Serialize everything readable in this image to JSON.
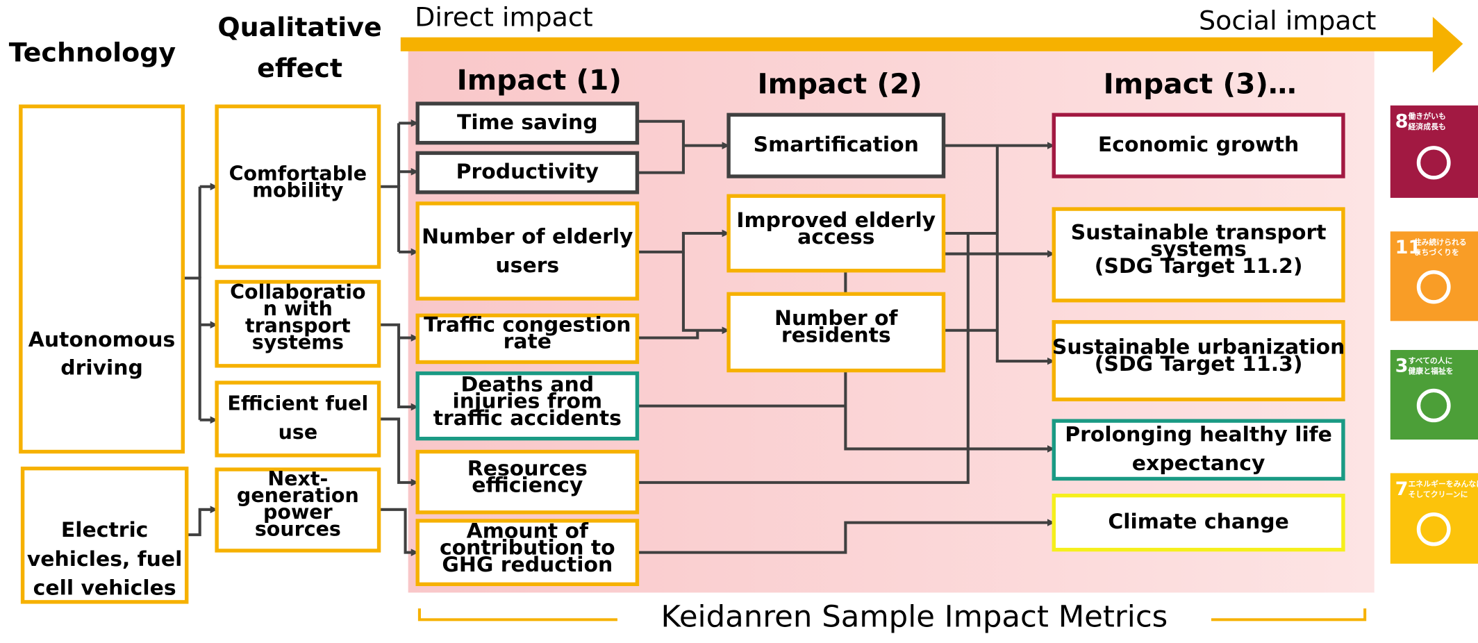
{
  "headers": {
    "technology": "Technology",
    "qualitative_effect": [
      "Qualitative",
      "effect"
    ],
    "direct_impact": "Direct impact",
    "social_impact": "Social impact",
    "impact_1": "Impact (1)",
    "impact_2": "Impact (2)",
    "impact_3": "Impact (3)…"
  },
  "nodes": [
    {
      "lines": [
        "Autonomous",
        "driving"
      ]
    },
    {
      "lines": [
        "Electric",
        "vehicles, fuel",
        "cell vehicles"
      ]
    },
    {
      "lines": [
        "Comfortable",
        "mobility"
      ]
    },
    {
      "lines": [
        "Collaboratio",
        "n with",
        "transport",
        "systems"
      ]
    },
    {
      "lines": [
        "Efficient fuel",
        "use"
      ]
    },
    {
      "lines": [
        "Next-",
        "generation",
        "power",
        "sources"
      ]
    },
    {
      "lines": [
        "Time saving"
      ]
    },
    {
      "lines": [
        "Productivity"
      ]
    },
    {
      "lines": [
        "Number of elderly",
        "users"
      ]
    },
    {
      "lines": [
        "Traffic congestion",
        "rate"
      ]
    },
    {
      "lines": [
        "Deaths and",
        "injuries from",
        "traffic accidents"
      ]
    },
    {
      "lines": [
        "Resources",
        "efficiency"
      ]
    },
    {
      "lines": [
        "Amount of",
        "contribution to",
        "GHG reduction"
      ]
    },
    {
      "lines": [
        "Smartification"
      ]
    },
    {
      "lines": [
        "Improved elderly",
        "access"
      ]
    },
    {
      "lines": [
        "Number of",
        "residents"
      ]
    },
    {
      "lines": [
        "Economic growth"
      ]
    },
    {
      "lines": [
        "Sustainable transport",
        "systems",
        "(SDG Target 11.2)"
      ]
    },
    {
      "lines": [
        "Sustainable urbanization",
        "(SDG Target 11.3)"
      ]
    },
    {
      "lines": [
        "Prolonging healthy life",
        "expectancy"
      ]
    },
    {
      "lines": [
        "Climate change"
      ]
    }
  ],
  "sdg_icons": [
    {
      "number": "8",
      "text": [
        "働きがいも",
        "経済成長も"
      ]
    },
    {
      "number": "11",
      "text": [
        "住み続けられる",
        "まちづくりを"
      ]
    },
    {
      "number": "3",
      "text": [
        "すべての人に",
        "健康と福祉を"
      ]
    },
    {
      "number": "7",
      "text": [
        "エネルギーをみんなに",
        "そしてクリーンに"
      ]
    }
  ],
  "footer": "Keidanren Sample Impact Metrics"
}
